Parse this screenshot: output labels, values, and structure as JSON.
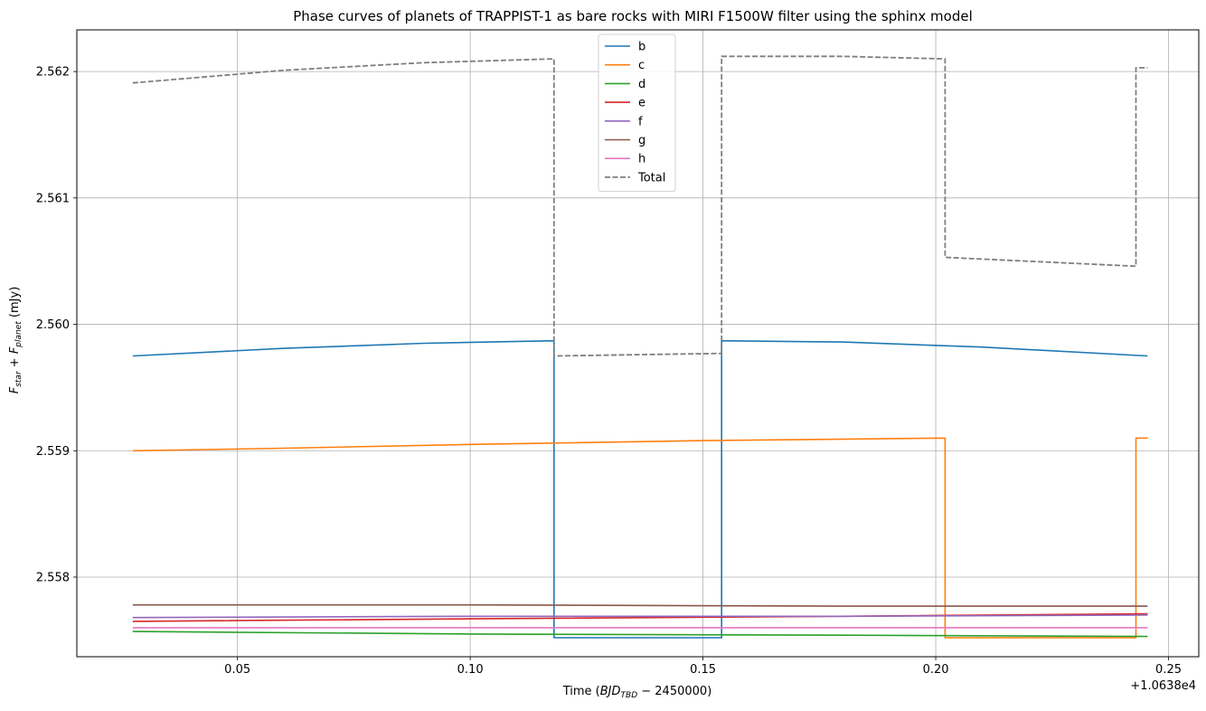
{
  "chart_data": {
    "type": "line",
    "title": "Phase curves of planets of TRAPPIST-1 as bare rocks with MIRI F1500W filter using the sphinx model",
    "xlabel_main": "Time (",
    "xlabel_math_base": "BJD",
    "xlabel_math_sub": "TBD",
    "xlabel_math_rest": " − 2450000",
    "xlabel_close": ")",
    "ylabel_F1": "F",
    "ylabel_sub1": "star",
    "ylabel_plus": " + ",
    "ylabel_F2": "F",
    "ylabel_sub2": "planet",
    "ylabel_unit": " (mJy)",
    "x_offset_label": "+1.0638e4",
    "xlim": [
      0.0155,
      0.2565
    ],
    "ylim": [
      2.55737,
      2.56233
    ],
    "xticks": [
      0.05,
      0.1,
      0.15,
      0.2,
      0.25
    ],
    "xtick_labels": [
      "0.05",
      "0.10",
      "0.15",
      "0.20",
      "0.25"
    ],
    "yticks": [
      2.558,
      2.559,
      2.56,
      2.561,
      2.562
    ],
    "ytick_labels": [
      "2.558",
      "2.559",
      "2.560",
      "2.561",
      "2.562"
    ],
    "grid": true,
    "legend_position": "upper center",
    "series": [
      {
        "name": "b",
        "color": "#1f77b4",
        "dash": false,
        "points": [
          [
            0.0275,
            2.55975
          ],
          [
            0.06,
            2.55981
          ],
          [
            0.09,
            2.55985
          ],
          [
            0.118,
            2.55987
          ],
          [
            0.118,
            2.55752
          ],
          [
            0.154,
            2.55752
          ],
          [
            0.154,
            2.55987
          ],
          [
            0.18,
            2.55986
          ],
          [
            0.21,
            2.55982
          ],
          [
            0.2455,
            2.55975
          ]
        ]
      },
      {
        "name": "c",
        "color": "#ff7f0e",
        "dash": false,
        "points": [
          [
            0.0275,
            2.559
          ],
          [
            0.06,
            2.55902
          ],
          [
            0.1,
            2.55905
          ],
          [
            0.15,
            2.55908
          ],
          [
            0.202,
            2.5591
          ],
          [
            0.202,
            2.55752
          ],
          [
            0.243,
            2.55752
          ],
          [
            0.243,
            2.5591
          ],
          [
            0.2455,
            2.5591
          ]
        ]
      },
      {
        "name": "d",
        "color": "#2ca02c",
        "dash": false,
        "points": [
          [
            0.0275,
            2.55757
          ],
          [
            0.1,
            2.55755
          ],
          [
            0.18,
            2.55754
          ],
          [
            0.2455,
            2.55753
          ]
        ]
      },
      {
        "name": "e",
        "color": "#d62728",
        "dash": false,
        "points": [
          [
            0.0275,
            2.55765
          ],
          [
            0.1,
            2.55767
          ],
          [
            0.18,
            2.55769
          ],
          [
            0.2455,
            2.55771
          ]
        ]
      },
      {
        "name": "f",
        "color": "#9467bd",
        "dash": false,
        "points": [
          [
            0.0275,
            2.55768
          ],
          [
            0.1,
            2.55769
          ],
          [
            0.18,
            2.55769
          ],
          [
            0.2455,
            2.5577
          ]
        ]
      },
      {
        "name": "g",
        "color": "#8c564b",
        "dash": false,
        "points": [
          [
            0.0275,
            2.55778
          ],
          [
            0.1,
            2.55778
          ],
          [
            0.18,
            2.55777
          ],
          [
            0.2455,
            2.55777
          ]
        ]
      },
      {
        "name": "h",
        "color": "#e377c2",
        "dash": false,
        "points": [
          [
            0.0275,
            2.5576
          ],
          [
            0.1,
            2.5576
          ],
          [
            0.18,
            2.5576
          ],
          [
            0.2455,
            2.5576
          ]
        ]
      },
      {
        "name": "Total",
        "color": "#7f7f7f",
        "dash": true,
        "points": [
          [
            0.0275,
            2.56191
          ],
          [
            0.06,
            2.56201
          ],
          [
            0.09,
            2.56207
          ],
          [
            0.118,
            2.5621
          ],
          [
            0.118,
            2.55975
          ],
          [
            0.154,
            2.55977
          ],
          [
            0.154,
            2.56212
          ],
          [
            0.18,
            2.56212
          ],
          [
            0.202,
            2.5621
          ],
          [
            0.202,
            2.56053
          ],
          [
            0.243,
            2.56046
          ],
          [
            0.243,
            2.56203
          ],
          [
            0.2455,
            2.56203
          ]
        ]
      }
    ]
  }
}
